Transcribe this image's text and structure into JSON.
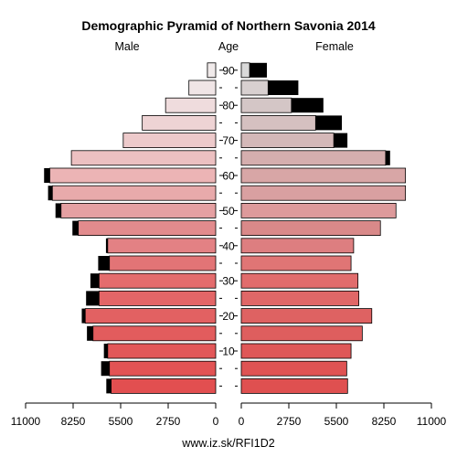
{
  "chart_data": {
    "type": "bar",
    "title": "Demographic Pyramid of Northern Savonia 2014",
    "left_header": "Male",
    "center_header": "Age",
    "right_header": "Female",
    "source": "www.iz.sk/RFI1D2",
    "age_groups": [
      "0-4",
      "5-9",
      "10-14",
      "15-19",
      "20-24",
      "25-29",
      "30-34",
      "35-39",
      "40-44",
      "45-49",
      "50-54",
      "55-59",
      "60-64",
      "65-69",
      "70-74",
      "75-79",
      "80-84",
      "85-89",
      "90+"
    ],
    "age_ticks": [
      "10",
      "20",
      "30",
      "40",
      "50",
      "60",
      "70",
      "80",
      "90"
    ],
    "x_ticks_left": [
      "11000",
      "8250",
      "5500",
      "2750",
      "0"
    ],
    "x_ticks_right": [
      "0",
      "2750",
      "5500",
      "8250",
      "11000"
    ],
    "xlim": [
      0,
      11000
    ],
    "series": [
      {
        "name": "Male",
        "values": [
          6050,
          6150,
          6250,
          7100,
          7550,
          6750,
          6750,
          6150,
          6250,
          7950,
          8950,
          9450,
          9600,
          8350,
          5350,
          4250,
          2900,
          1550,
          480
        ]
      },
      {
        "name": "Female",
        "values": [
          6150,
          6100,
          6350,
          7000,
          7550,
          6800,
          6750,
          6350,
          6500,
          8050,
          8950,
          9500,
          9500,
          8350,
          5350,
          4300,
          2900,
          1550,
          480
        ]
      }
    ],
    "male_excess": [
      280,
      480,
      220,
      350,
      200,
      750,
      500,
      650,
      100,
      340,
      320,
      250,
      330,
      0,
      0,
      0,
      0,
      0,
      0
    ],
    "female_excess": [
      0,
      0,
      0,
      0,
      0,
      0,
      0,
      0,
      0,
      0,
      0,
      0,
      0,
      260,
      790,
      1520,
      1850,
      1750,
      1000
    ],
    "male_colors": [
      "#e24f50",
      "#e25354",
      "#e25758",
      "#e25c5d",
      "#e26162",
      "#e36667",
      "#e46c6d",
      "#e27476",
      "#e38184",
      "#e28b8d",
      "#e5a0a2",
      "#e8aaab",
      "#ecb4b5",
      "#ecc0c1",
      "#edcacb",
      "#eed3d4",
      "#efdcdd",
      "#f0e5e6",
      "#f0eaea"
    ],
    "female_colors": [
      "#df5050",
      "#df5353",
      "#df5757",
      "#de5e5e",
      "#de6262",
      "#e06767",
      "#e16c6c",
      "#e07575",
      "#dd7e80",
      "#d98989",
      "#dd9a9b",
      "#d9a0a1",
      "#d8a6a6",
      "#d5aeae",
      "#d4b8b8",
      "#d5c0c0",
      "#d4c6c6",
      "#d8d0d0",
      "#d9d9d9"
    ],
    "excess_color": "#000000",
    "grid": false
  }
}
